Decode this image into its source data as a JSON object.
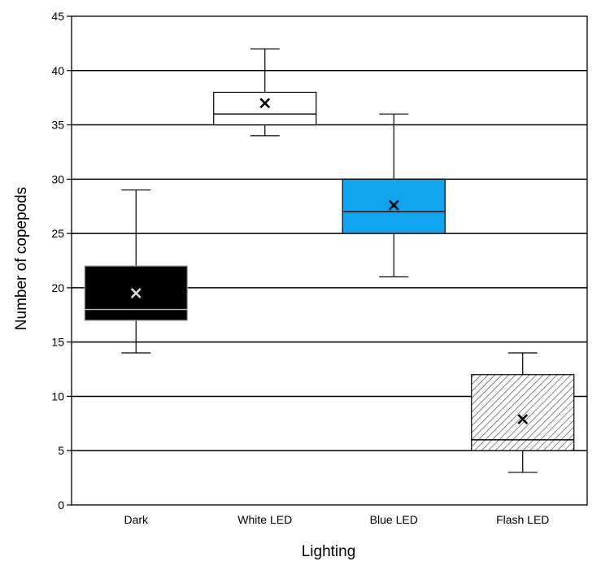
{
  "chart_data": {
    "type": "box",
    "title": "",
    "xlabel": "Lighting",
    "ylabel": "Number of copepods",
    "ylim": [
      0,
      45
    ],
    "yticks": [
      0,
      5,
      10,
      15,
      20,
      25,
      30,
      35,
      40,
      45
    ],
    "grid": "horizontal",
    "legend": "none",
    "categories": [
      "Dark",
      "White LED",
      "Blue LED",
      "Flash LED"
    ],
    "boxes": [
      {
        "category": "Dark",
        "min": 14,
        "q1": 17,
        "median": 18,
        "q3": 22,
        "max": 29,
        "mean": 19.5,
        "fill": "#000000",
        "pattern": "solid",
        "mean_marker_color": "#d9d9d9",
        "median_color": "#bfbfbf"
      },
      {
        "category": "White LED",
        "min": 34,
        "q1": 35,
        "median": 36,
        "q3": 38,
        "max": 42,
        "mean": 37,
        "fill": "#ffffff",
        "pattern": "solid",
        "mean_marker_color": "#000000",
        "median_color": "#000000"
      },
      {
        "category": "Blue LED",
        "min": 21,
        "q1": 25,
        "median": 27,
        "q3": 30,
        "max": 36,
        "mean": 27.6,
        "fill": "#12a5ef",
        "pattern": "solid",
        "mean_marker_color": "#000000",
        "median_color": "#000000"
      },
      {
        "category": "Flash LED",
        "min": 3,
        "q1": 5,
        "median": 6,
        "q3": 12,
        "max": 14,
        "mean": 7.9,
        "fill": "#ffffff",
        "pattern": "diagonal-hatch",
        "mean_marker_color": "#000000",
        "median_color": "#000000"
      }
    ]
  }
}
